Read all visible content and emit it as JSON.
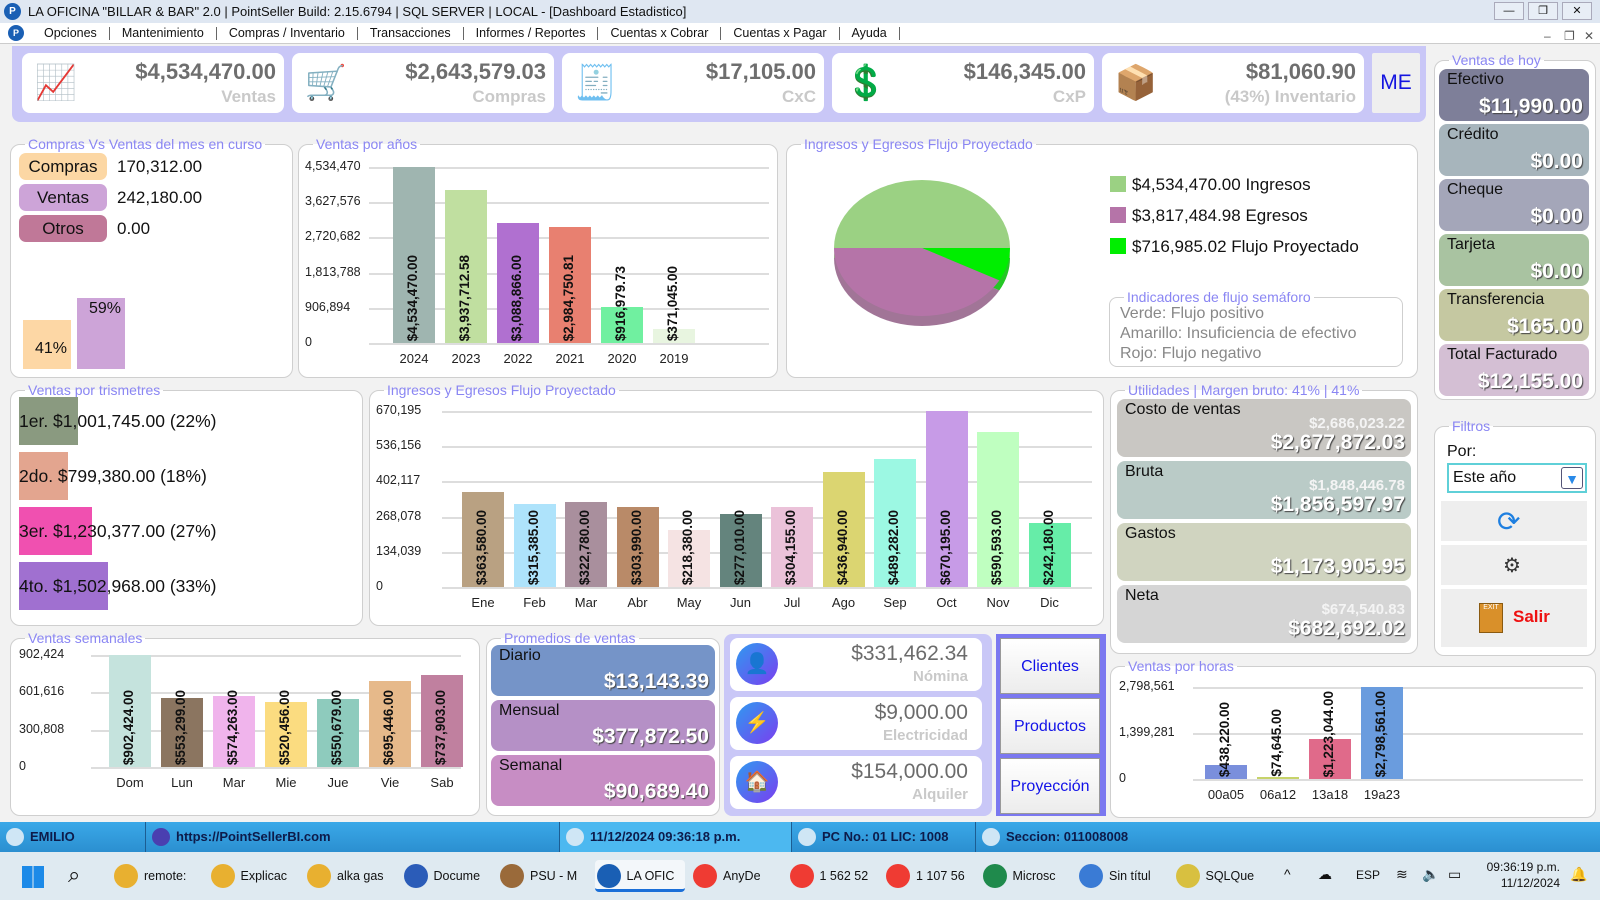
{
  "window": {
    "title": "LA OFICINA \"BILLAR & BAR\" 2.0 | PointSeller  Build: 2.15.6794  | SQL SERVER | LOCAL - [Dashboard Estadistico]"
  },
  "menu": [
    "Opciones",
    "Mantenimiento",
    "Compras / Inventario",
    "Transacciones",
    "Informes / Reportes",
    "Cuentas x Cobrar",
    "Cuentas x Pagar",
    "Ayuda"
  ],
  "kpis": [
    {
      "value": "$4,534,470.00",
      "label": "Ventas",
      "icon": "sale-chart-icon"
    },
    {
      "value": "$2,643,579.03",
      "label": "Compras",
      "icon": "shopping-cart-icon"
    },
    {
      "value": "$17,105.00",
      "label": "CxC",
      "icon": "calculator-invoice-icon"
    },
    {
      "value": "$146,345.00",
      "label": "CxP",
      "icon": "dollar-coin-icon"
    },
    {
      "value": "$81,060.90",
      "label": "(43%) Inventario",
      "icon": "inventory-boxes-icon"
    }
  ],
  "me_button": "ME",
  "compras_ventas": {
    "title": "Compras Vs Ventas del mes en curso",
    "rows": [
      {
        "label": "Compras",
        "value": "170,312.00",
        "color": "#fcd7a4"
      },
      {
        "label": "Ventas",
        "value": "242,180.00",
        "color": "#cda4d8"
      },
      {
        "label": "Otros",
        "value": "0.00",
        "color": "#c07898"
      }
    ],
    "bars": [
      {
        "pct": 41,
        "label": "41%",
        "color": "#fdd7a5"
      },
      {
        "pct": 59,
        "label": "59%",
        "color": "#cda4d8"
      }
    ]
  },
  "chart_data": [
    {
      "id": "years",
      "type": "bar",
      "title": "Ventas por años",
      "categories": [
        "2024",
        "2023",
        "2022",
        "2021",
        "2020",
        "2019"
      ],
      "values": [
        4534470.0,
        3937712.58,
        3088866.0,
        2984750.81,
        916979.73,
        371045.0
      ],
      "labels": [
        "$4,534,470.00",
        "$3,937,712.58",
        "$3,088,866.00",
        "$2,984,750.81",
        "$916,979.73",
        "$371,045.00"
      ],
      "colors": [
        "#9fb5b0",
        "#c0dfa0",
        "#b070d0",
        "#e88070",
        "#70f0a0",
        "#e8f5e0"
      ],
      "yticks": [
        "4,534,470",
        "3,627,576",
        "2,720,682",
        "1,813,788",
        "906,894",
        "0"
      ],
      "ylim": [
        0,
        4534470
      ]
    },
    {
      "id": "pie",
      "type": "pie",
      "title": "Ingresos y Egresos Flujo Proyectado",
      "slices": [
        {
          "name": "Ingresos",
          "value": 4534470.0,
          "label": "$4,534,470.00 Ingresos",
          "color": "#9bd183"
        },
        {
          "name": "Flujo Proyectado",
          "value": 716985.02,
          "label": "$716,985.02 Flujo Proyectado",
          "color": "#00ee00"
        },
        {
          "name": "Egresos",
          "value": 3817484.98,
          "label": "$3,817,484.98 Egresos",
          "color": "#b574a8"
        }
      ]
    },
    {
      "id": "months",
      "type": "bar",
      "title": "Ingresos y Egresos Flujo Proyectado",
      "categories": [
        "Ene",
        "Feb",
        "Mar",
        "Abr",
        "May",
        "Jun",
        "Jul",
        "Ago",
        "Sep",
        "Oct",
        "Nov",
        "Dic"
      ],
      "values": [
        363580,
        315385,
        322780,
        303990,
        218380,
        277010,
        304155,
        436940,
        489282,
        670195,
        590593,
        242180
      ],
      "labels": [
        "$363,580.00",
        "$315,385.00",
        "$322,780.00",
        "$303,990.00",
        "$218,380.00",
        "$277,010.00",
        "$304,155.00",
        "$436,940.00",
        "$489,282.00",
        "$670,195.00",
        "$590,593.00",
        "$242,180.00"
      ],
      "colors": [
        "#b9a182",
        "#aee3fb",
        "#a98f9d",
        "#b98a68",
        "#f5e3e3",
        "#64847d",
        "#ebc2d9",
        "#dbd571",
        "#9cf8e3",
        "#c79be7",
        "#bfffc0",
        "#66eda8"
      ],
      "yticks": [
        "670,195",
        "536,156",
        "402,117",
        "268,078",
        "134,039",
        "0"
      ],
      "ylim": [
        0,
        670195
      ]
    },
    {
      "id": "week",
      "type": "bar",
      "title": "Ventas semanales",
      "categories": [
        "Dom",
        "Lun",
        "Mar",
        "Mie",
        "Jue",
        "Vie",
        "Sab"
      ],
      "values": [
        902424,
        553299,
        574263,
        520456,
        550679,
        695446,
        737903
      ],
      "labels": [
        "$902,424.00",
        "$553,299.00",
        "$574,263.00",
        "$520,456.00",
        "$550,679.00",
        "$695,446.00",
        "$737,903.00"
      ],
      "colors": [
        "#c5e3dd",
        "#8b7560",
        "#f0b4ec",
        "#fbdc80",
        "#8ecbbd",
        "#e6b98a",
        "#c0809f"
      ],
      "yticks": [
        "902,424",
        "601,616",
        "300,808",
        "0"
      ],
      "ylim": [
        0,
        902424
      ]
    },
    {
      "id": "hours",
      "type": "bar",
      "title": "Ventas por horas",
      "categories": [
        "00a05",
        "06a12",
        "13a18",
        "19a23"
      ],
      "values": [
        438220,
        74645,
        1223044,
        2798561
      ],
      "labels": [
        "$438,220.00",
        "$74,645.00",
        "$1,223,044.00",
        "$2,798,561.00"
      ],
      "colors": [
        "#7a8fdc",
        "#c7d36a",
        "#e06a8a",
        "#6a9cde"
      ],
      "yticks": [
        "2,798,561",
        "1,399,281",
        "0"
      ],
      "ylim": [
        0,
        2798561
      ]
    }
  ],
  "semaforo": {
    "title": "Indicadores de flujo semáforo",
    "lines": [
      "Verde: Flujo positivo",
      "Amarillo: Insuficiencia de efectivo",
      "Rojo: Flujo negativo"
    ]
  },
  "trimestres": {
    "title": "Ventas por trismetres",
    "rows": [
      {
        "label": "1er. $1,001,745.00 (22%)",
        "pct": 22,
        "color": "#8a9a80"
      },
      {
        "label": "2do. $799,380.00 (18%)",
        "pct": 18,
        "color": "#e3a58f"
      },
      {
        "label": "3er. $1,230,377.00 (27%)",
        "pct": 27,
        "color": "#f050b0"
      },
      {
        "label": "4to. $1,502,968.00 (33%)",
        "pct": 33,
        "color": "#a070d0"
      }
    ]
  },
  "utilidades": {
    "title": "Utilidades | Margen bruto: 41%  |  41%",
    "cards": [
      {
        "label": "Costo de ventas",
        "value1": "$2,686,023.22",
        "value2": "$2,677,872.03",
        "color": "#c9c7c3"
      },
      {
        "label": "Bruta",
        "value1": "$1,848,446.78",
        "value2": "$1,856,597.97",
        "color": "#bacbc7"
      },
      {
        "label": "Gastos",
        "value1": "",
        "value2": "$1,173,905.95",
        "color": "#d0d4c0"
      },
      {
        "label": "Neta",
        "value1": "$674,540.83",
        "value2": "$682,692.02",
        "color": "#d5d5d5"
      }
    ]
  },
  "ventas_hoy": {
    "title": "Ventas de hoy",
    "cards": [
      {
        "label": "Efectivo",
        "value": "$11,990.00",
        "color": "#7e7f99"
      },
      {
        "label": "Crédito",
        "value": "$0.00",
        "color": "#a7b5bc"
      },
      {
        "label": "Cheque",
        "value": "$0.00",
        "color": "#a4a6b9"
      },
      {
        "label": "Tarjeta",
        "value": "$0.00",
        "color": "#a9c3a1"
      },
      {
        "label": "Transferencia",
        "value": "$165.00",
        "color": "#c5c8a1"
      },
      {
        "label": "Total Facturado",
        "value": "$12,155.00",
        "color": "#d4bfd4"
      }
    ]
  },
  "filtros": {
    "title": "Filtros",
    "por_label": "Por:",
    "select_value": "Este año",
    "salir_label": "Salir"
  },
  "promedios": {
    "title": "Promedios de ventas",
    "cards": [
      {
        "label": "Diario",
        "value": "$13,143.39",
        "color": "#7594c8"
      },
      {
        "label": "Mensual",
        "value": "$377,872.50",
        "color": "#b590c6"
      },
      {
        "label": "Semanal",
        "value": "$90,689.40",
        "color": "#c78dc4"
      }
    ]
  },
  "gastos": [
    {
      "value": "$331,462.34",
      "label": "Nómina",
      "icon": "employee-icon"
    },
    {
      "value": "$9,000.00",
      "label": "Electricidad",
      "icon": "electricity-icon"
    },
    {
      "value": "$154,000.00",
      "label": "Alquiler",
      "icon": "rent-house-icon"
    }
  ],
  "nav_buttons": [
    "Clientes",
    "Productos",
    "Proyección"
  ],
  "status": {
    "user": "EMILIO",
    "url": "https://PointSellerBI.com",
    "datetime": "11/12/2024 09:36:18 p.m.",
    "pc": "PC No.: 01 LIC: 1008",
    "seccion": "Seccion: 011008008"
  },
  "taskbar": {
    "apps": [
      {
        "label": "remote:",
        "color": "#e8b030"
      },
      {
        "label": "Explicac",
        "color": "#e8b030"
      },
      {
        "label": "alka gas",
        "color": "#e8b030"
      },
      {
        "label": "Docume",
        "color": "#2b5cb8"
      },
      {
        "label": "PSU - M",
        "color": "#9a6a3a"
      },
      {
        "label": "LA OFIC",
        "color": "#1a5fb4"
      },
      {
        "label": "AnyDe",
        "color": "#ef3b33"
      },
      {
        "label": "1 562 52",
        "color": "#ef3b33"
      },
      {
        "label": "1 107 56",
        "color": "#ef3b33"
      },
      {
        "label": "Microsc",
        "color": "#1f8a4c"
      },
      {
        "label": "Sin títul",
        "color": "#3a7bd5"
      },
      {
        "label": "SQLQue",
        "color": "#d8c040"
      }
    ],
    "lang": "ESP",
    "time": "09:36:19 p.m.",
    "date": "11/12/2024"
  }
}
